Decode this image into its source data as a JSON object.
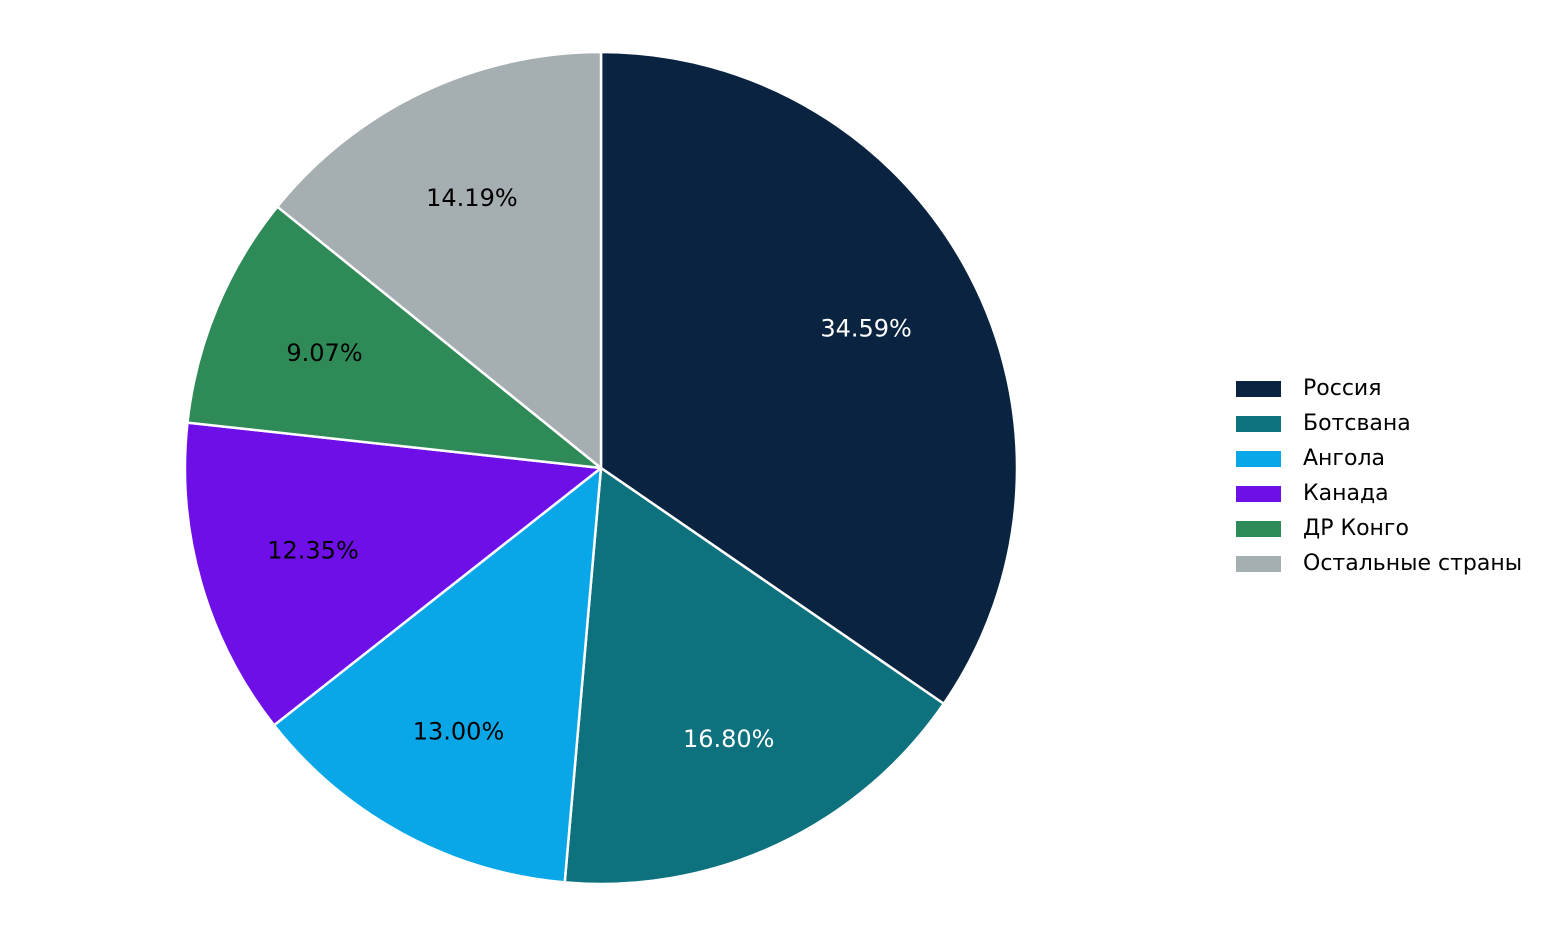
{
  "chart_data": {
    "type": "pie",
    "title": "",
    "unit": "%",
    "categories": [
      "Россия",
      "Ботсвана",
      "Ангола",
      "Канада",
      "ДР Конго",
      "Остальные страны"
    ],
    "values": [
      34.59,
      16.8,
      13.0,
      12.35,
      9.07,
      14.19
    ],
    "slices": [
      {
        "label": "Россия",
        "value": 34.59,
        "pct_label": "34.59%",
        "color": "#0a2340",
        "label_color": "#ffffff"
      },
      {
        "label": "Ботсвана",
        "value": 16.8,
        "pct_label": "16.80%",
        "color": "#0d717e",
        "label_color": "#ffffff"
      },
      {
        "label": "Ангола",
        "value": 13.0,
        "pct_label": "13.00%",
        "color": "#09a6e8",
        "label_color": "#000000"
      },
      {
        "label": "Канада",
        "value": 12.35,
        "pct_label": "12.35%",
        "color": "#6e0fe8",
        "label_color": "#000000"
      },
      {
        "label": "ДР Конго",
        "value": 9.07,
        "pct_label": "9.07%",
        "color": "#2e8b57",
        "label_color": "#000000"
      },
      {
        "label": "Остальные страны",
        "value": 14.19,
        "pct_label": "14.19%",
        "color": "#a5aeb0",
        "label_color": "#000000"
      }
    ],
    "start_angle": "top",
    "direction": "clockwise",
    "label_distance": 0.72,
    "slice_edge_color": "#ffffff",
    "legend_position": "center-right",
    "background": "#ffffff"
  }
}
